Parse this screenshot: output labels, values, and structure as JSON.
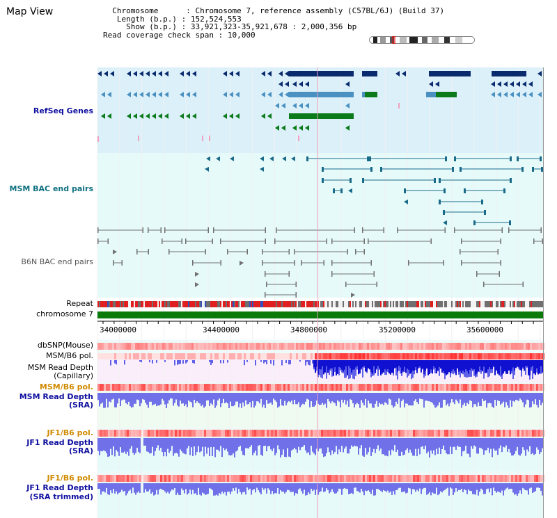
{
  "page": {
    "title": "Map View"
  },
  "info": {
    "chromosome_label": "Chromosome",
    "chromosome_value": "Chromosome 7, reference assembly (C57BL/6J) (Build 37)",
    "length_label": "Length (b.p.)",
    "length_value": "152,524,553",
    "show_label": "Show (b.p.)",
    "show_value": "33,921,323-35,921,678 : 2,000,356 bp",
    "span_label": "Read coverage check span",
    "span_value": "10,000"
  },
  "tracks": {
    "refseq": "RefSeq Genes",
    "msm_bac": "MSM BAC end pairs",
    "b6n_bac": "B6N BAC end pairs",
    "repeat": "Repeat",
    "chromosome": "chromosome 7",
    "dbsnp": "dbSNP(Mouse)",
    "msm_b6_pol_1": "MSM/B6 pol.",
    "msm_depth_cap_1": "MSM Read Depth",
    "msm_depth_cap_2": "(Capillary)",
    "msm_b6_pol_2": "MSM/B6 pol.",
    "msm_depth_sra_1": "MSM Read Depth",
    "msm_depth_sra_2": "(SRA)",
    "jf1_b6_pol_1": "JF1/B6 pol.",
    "jf1_depth_sra_1": "JF1 Read Depth",
    "jf1_depth_sra_2": "(SRA)",
    "jf1_b6_pol_2": "JF1/B6 pol.",
    "jf1_depth_trim_1": "JF1 Read Depth",
    "jf1_depth_trim_2": "(SRA trimmed)"
  },
  "axis": {
    "ticks": [
      "34000000",
      "34400000",
      "34800000",
      "35200000",
      "35600000"
    ]
  },
  "colors": {
    "refseq_bg": "#dcf0fa",
    "bac_bg": "#e6fafa",
    "gene_dark": "#0a2a6e",
    "gene_mid": "#4a90c0",
    "gene_green": "#0a7a1a",
    "msm_line": "#1a6a8a",
    "b6n_line": "#707070",
    "chrom_bar": "#0a7a0a",
    "label_blue": "#1010a0",
    "label_teal": "#107080",
    "label_orange": "#d08a00",
    "depth_blue": "#2020d0",
    "depth_light": "#7070e8"
  }
}
